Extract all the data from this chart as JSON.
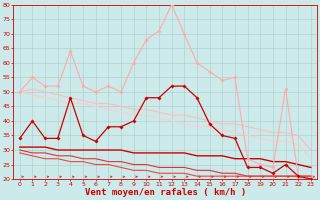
{
  "background_color": "#cceaea",
  "grid_color": "#aacccc",
  "xlabel": "Vent moyen/en rafales ( km/h )",
  "xlabel_color": "#cc0000",
  "xlim": [
    -0.5,
    23.5
  ],
  "ylim": [
    20,
    80
  ],
  "yticks": [
    20,
    25,
    30,
    35,
    40,
    45,
    50,
    55,
    60,
    65,
    70,
    75,
    80
  ],
  "xticks": [
    0,
    1,
    2,
    3,
    4,
    5,
    6,
    7,
    8,
    9,
    10,
    11,
    12,
    13,
    14,
    15,
    16,
    17,
    18,
    19,
    20,
    21,
    22,
    23
  ],
  "series": [
    {
      "x": [
        0,
        1,
        2,
        3,
        4,
        5,
        6,
        7,
        8,
        9,
        10,
        11,
        12,
        13,
        14,
        15,
        16,
        17,
        18,
        19,
        20,
        21,
        22,
        23
      ],
      "y": [
        50,
        55,
        52,
        52,
        64,
        52,
        50,
        52,
        50,
        60,
        68,
        71,
        80,
        70,
        60,
        57,
        54,
        55,
        27,
        25,
        24,
        51,
        21,
        20
      ],
      "color": "#ffaaaa",
      "lw": 0.8,
      "marker": "D",
      "ms": 1.8
    },
    {
      "x": [
        0,
        1,
        2,
        3,
        4,
        5,
        6,
        7,
        8,
        9,
        10,
        11,
        12,
        13,
        14,
        15,
        16,
        17,
        18,
        19,
        20,
        21,
        22,
        23
      ],
      "y": [
        50,
        51,
        50,
        49,
        48,
        47,
        46,
        46,
        45,
        44,
        44,
        43,
        42,
        42,
        41,
        40,
        39,
        39,
        38,
        37,
        36,
        36,
        35,
        30
      ],
      "color": "#ffbbbb",
      "lw": 0.8,
      "marker": null,
      "ms": 0
    },
    {
      "x": [
        0,
        1,
        2,
        3,
        4,
        5,
        6,
        7,
        8,
        9,
        10,
        11,
        12,
        13,
        14,
        15,
        16,
        17,
        18,
        19,
        20,
        21,
        22,
        23
      ],
      "y": [
        50,
        49,
        48,
        47,
        46,
        46,
        45,
        44,
        43,
        42,
        42,
        41,
        40,
        39,
        38,
        38,
        37,
        36,
        35,
        34,
        33,
        33,
        32,
        27
      ],
      "color": "#ffcccc",
      "lw": 0.8,
      "marker": null,
      "ms": 0
    },
    {
      "x": [
        0,
        1,
        2,
        3,
        4,
        5,
        6,
        7,
        8,
        9,
        10,
        11,
        12,
        13,
        14,
        15,
        16,
        17,
        18,
        19,
        20,
        21,
        22,
        23
      ],
      "y": [
        34,
        40,
        34,
        34,
        48,
        35,
        33,
        38,
        38,
        40,
        48,
        48,
        52,
        52,
        48,
        39,
        35,
        34,
        24,
        24,
        22,
        25,
        21,
        20
      ],
      "color": "#cc0000",
      "lw": 0.9,
      "marker": "D",
      "ms": 1.8
    },
    {
      "x": [
        0,
        1,
        2,
        3,
        4,
        5,
        6,
        7,
        8,
        9,
        10,
        11,
        12,
        13,
        14,
        15,
        16,
        17,
        18,
        19,
        20,
        21,
        22,
        23
      ],
      "y": [
        31,
        31,
        31,
        30,
        30,
        30,
        30,
        30,
        30,
        29,
        29,
        29,
        29,
        29,
        28,
        28,
        28,
        27,
        27,
        27,
        26,
        26,
        25,
        24
      ],
      "color": "#cc0000",
      "lw": 1.0,
      "marker": null,
      "ms": 0
    },
    {
      "x": [
        0,
        1,
        2,
        3,
        4,
        5,
        6,
        7,
        8,
        9,
        10,
        11,
        12,
        13,
        14,
        15,
        16,
        17,
        18,
        19,
        20,
        21,
        22,
        23
      ],
      "y": [
        30,
        29,
        29,
        28,
        28,
        27,
        27,
        26,
        26,
        25,
        25,
        24,
        24,
        24,
        23,
        23,
        22,
        22,
        21,
        21,
        21,
        21,
        21,
        21
      ],
      "color": "#dd3333",
      "lw": 0.8,
      "marker": null,
      "ms": 0
    },
    {
      "x": [
        0,
        1,
        2,
        3,
        4,
        5,
        6,
        7,
        8,
        9,
        10,
        11,
        12,
        13,
        14,
        15,
        16,
        17,
        18,
        19,
        20,
        21,
        22,
        23
      ],
      "y": [
        29,
        28,
        27,
        27,
        26,
        26,
        25,
        25,
        24,
        23,
        23,
        22,
        22,
        22,
        21,
        21,
        21,
        21,
        21,
        21,
        21,
        21,
        21,
        21
      ],
      "color": "#ee4444",
      "lw": 0.8,
      "marker": null,
      "ms": 0
    }
  ],
  "tick_fontsize": 4.5,
  "xlabel_fontsize": 6.5
}
